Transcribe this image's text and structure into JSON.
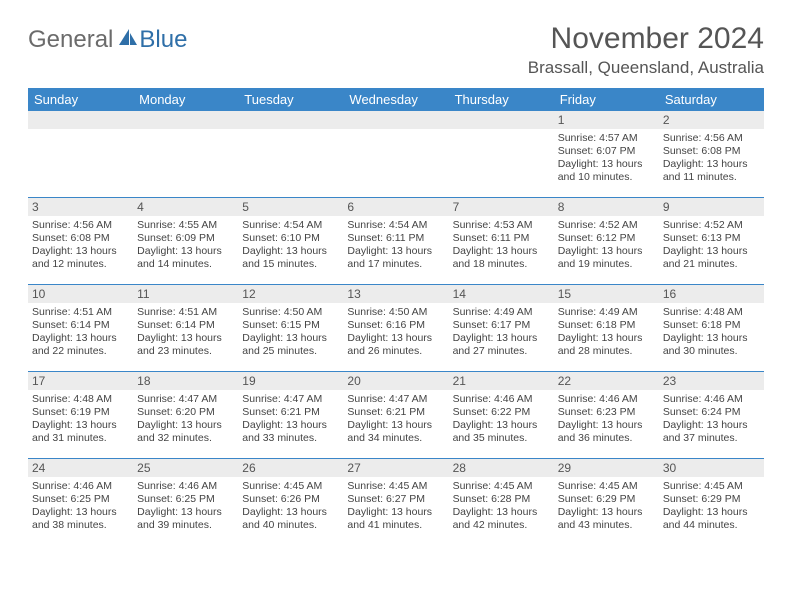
{
  "logo": {
    "textGray": "General",
    "textBlue": "Blue"
  },
  "title": "November 2024",
  "location": "Brassall, Queensland, Australia",
  "colors": {
    "headerBlue": "#3a86c8",
    "dayStrip": "#ececec",
    "borderBlue": "#3a86c8",
    "logoGray": "#6b6b6b",
    "logoBlue": "#2f6fa8",
    "textDark": "#555"
  },
  "dayHeaders": [
    "Sunday",
    "Monday",
    "Tuesday",
    "Wednesday",
    "Thursday",
    "Friday",
    "Saturday"
  ],
  "weeks": [
    [
      null,
      null,
      null,
      null,
      null,
      {
        "n": "1",
        "sr": "4:57 AM",
        "ss": "6:07 PM",
        "dl1": "Daylight: 13 hours",
        "dl2": "and 10 minutes."
      },
      {
        "n": "2",
        "sr": "4:56 AM",
        "ss": "6:08 PM",
        "dl1": "Daylight: 13 hours",
        "dl2": "and 11 minutes."
      }
    ],
    [
      {
        "n": "3",
        "sr": "4:56 AM",
        "ss": "6:08 PM",
        "dl1": "Daylight: 13 hours",
        "dl2": "and 12 minutes."
      },
      {
        "n": "4",
        "sr": "4:55 AM",
        "ss": "6:09 PM",
        "dl1": "Daylight: 13 hours",
        "dl2": "and 14 minutes."
      },
      {
        "n": "5",
        "sr": "4:54 AM",
        "ss": "6:10 PM",
        "dl1": "Daylight: 13 hours",
        "dl2": "and 15 minutes."
      },
      {
        "n": "6",
        "sr": "4:54 AM",
        "ss": "6:11 PM",
        "dl1": "Daylight: 13 hours",
        "dl2": "and 17 minutes."
      },
      {
        "n": "7",
        "sr": "4:53 AM",
        "ss": "6:11 PM",
        "dl1": "Daylight: 13 hours",
        "dl2": "and 18 minutes."
      },
      {
        "n": "8",
        "sr": "4:52 AM",
        "ss": "6:12 PM",
        "dl1": "Daylight: 13 hours",
        "dl2": "and 19 minutes."
      },
      {
        "n": "9",
        "sr": "4:52 AM",
        "ss": "6:13 PM",
        "dl1": "Daylight: 13 hours",
        "dl2": "and 21 minutes."
      }
    ],
    [
      {
        "n": "10",
        "sr": "4:51 AM",
        "ss": "6:14 PM",
        "dl1": "Daylight: 13 hours",
        "dl2": "and 22 minutes."
      },
      {
        "n": "11",
        "sr": "4:51 AM",
        "ss": "6:14 PM",
        "dl1": "Daylight: 13 hours",
        "dl2": "and 23 minutes."
      },
      {
        "n": "12",
        "sr": "4:50 AM",
        "ss": "6:15 PM",
        "dl1": "Daylight: 13 hours",
        "dl2": "and 25 minutes."
      },
      {
        "n": "13",
        "sr": "4:50 AM",
        "ss": "6:16 PM",
        "dl1": "Daylight: 13 hours",
        "dl2": "and 26 minutes."
      },
      {
        "n": "14",
        "sr": "4:49 AM",
        "ss": "6:17 PM",
        "dl1": "Daylight: 13 hours",
        "dl2": "and 27 minutes."
      },
      {
        "n": "15",
        "sr": "4:49 AM",
        "ss": "6:18 PM",
        "dl1": "Daylight: 13 hours",
        "dl2": "and 28 minutes."
      },
      {
        "n": "16",
        "sr": "4:48 AM",
        "ss": "6:18 PM",
        "dl1": "Daylight: 13 hours",
        "dl2": "and 30 minutes."
      }
    ],
    [
      {
        "n": "17",
        "sr": "4:48 AM",
        "ss": "6:19 PM",
        "dl1": "Daylight: 13 hours",
        "dl2": "and 31 minutes."
      },
      {
        "n": "18",
        "sr": "4:47 AM",
        "ss": "6:20 PM",
        "dl1": "Daylight: 13 hours",
        "dl2": "and 32 minutes."
      },
      {
        "n": "19",
        "sr": "4:47 AM",
        "ss": "6:21 PM",
        "dl1": "Daylight: 13 hours",
        "dl2": "and 33 minutes."
      },
      {
        "n": "20",
        "sr": "4:47 AM",
        "ss": "6:21 PM",
        "dl1": "Daylight: 13 hours",
        "dl2": "and 34 minutes."
      },
      {
        "n": "21",
        "sr": "4:46 AM",
        "ss": "6:22 PM",
        "dl1": "Daylight: 13 hours",
        "dl2": "and 35 minutes."
      },
      {
        "n": "22",
        "sr": "4:46 AM",
        "ss": "6:23 PM",
        "dl1": "Daylight: 13 hours",
        "dl2": "and 36 minutes."
      },
      {
        "n": "23",
        "sr": "4:46 AM",
        "ss": "6:24 PM",
        "dl1": "Daylight: 13 hours",
        "dl2": "and 37 minutes."
      }
    ],
    [
      {
        "n": "24",
        "sr": "4:46 AM",
        "ss": "6:25 PM",
        "dl1": "Daylight: 13 hours",
        "dl2": "and 38 minutes."
      },
      {
        "n": "25",
        "sr": "4:46 AM",
        "ss": "6:25 PM",
        "dl1": "Daylight: 13 hours",
        "dl2": "and 39 minutes."
      },
      {
        "n": "26",
        "sr": "4:45 AM",
        "ss": "6:26 PM",
        "dl1": "Daylight: 13 hours",
        "dl2": "and 40 minutes."
      },
      {
        "n": "27",
        "sr": "4:45 AM",
        "ss": "6:27 PM",
        "dl1": "Daylight: 13 hours",
        "dl2": "and 41 minutes."
      },
      {
        "n": "28",
        "sr": "4:45 AM",
        "ss": "6:28 PM",
        "dl1": "Daylight: 13 hours",
        "dl2": "and 42 minutes."
      },
      {
        "n": "29",
        "sr": "4:45 AM",
        "ss": "6:29 PM",
        "dl1": "Daylight: 13 hours",
        "dl2": "and 43 minutes."
      },
      {
        "n": "30",
        "sr": "4:45 AM",
        "ss": "6:29 PM",
        "dl1": "Daylight: 13 hours",
        "dl2": "and 44 minutes."
      }
    ]
  ]
}
